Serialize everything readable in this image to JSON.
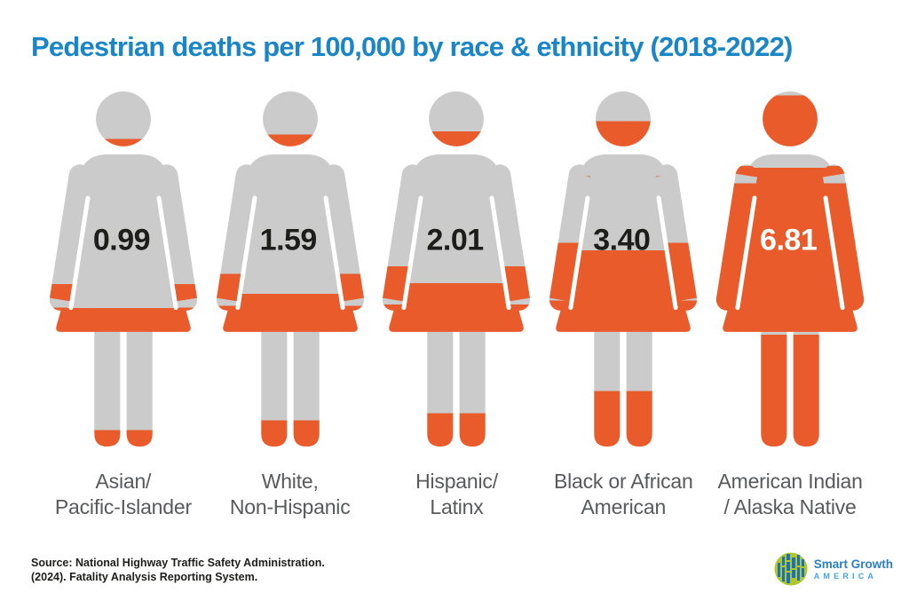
{
  "title": "Pedestrian deaths per 100,000 by race & ethnicity (2018-2022)",
  "chart_data": {
    "type": "pictogram",
    "title": "Pedestrian deaths per 100,000 by race & ethnicity (2018-2022)",
    "unit": "pedestrian deaths per 100,000 people",
    "period": "2018-2022",
    "categories": [
      "Asian/Pacific-Islander",
      "White, Non-Hispanic",
      "Hispanic/Latinx",
      "Black or African American",
      "American Indian / Alaska Native"
    ],
    "values": [
      0.99,
      1.59,
      2.01,
      3.4,
      6.81
    ],
    "max_value": 6.81,
    "legend": "none",
    "grid": false,
    "fill_color": "#ea5b2b",
    "base_color": "#cbcbcb",
    "note": "each female figure is filled orange from the bottom in proportion to its value"
  },
  "figures": [
    {
      "id": "asian-pacific-islander",
      "value": 0.99,
      "value_text": "0.99",
      "fill_percent": 13.5,
      "value_color": "#1d1d1b",
      "label_line1": "Asian/",
      "label_line2": "Pacific-Islander"
    },
    {
      "id": "white-non-hispanic",
      "value": 1.59,
      "value_text": "1.59",
      "fill_percent": 21.5,
      "value_color": "#1d1d1b",
      "label_line1": "White,",
      "label_line2": "Non-Hispanic"
    },
    {
      "id": "hispanic-latinx",
      "value": 2.01,
      "value_text": "2.01",
      "fill_percent": 27.5,
      "value_color": "#1d1d1b",
      "label_line1": "Hispanic/",
      "label_line2": "Latinx"
    },
    {
      "id": "black-or-african-american",
      "value": 3.4,
      "value_text": "3.40",
      "fill_percent": 46,
      "value_color": "#1d1d1b",
      "label_line1": "Black or African",
      "label_line2": "American"
    },
    {
      "id": "american-indian-alaska-native",
      "value": 6.81,
      "value_text": "6.81",
      "fill_percent": 92.5,
      "value_color": "#ffffff",
      "label_line1": "American Indian",
      "label_line2": "/ Alaska Native"
    }
  ],
  "footer": {
    "source_line1": "Source: National Highway Traffic Safety Administration.",
    "source_line2": "(2024). Fatality Analysis Reporting System.",
    "logo_line1": "Smart Growth",
    "logo_line2": "AMERICA"
  },
  "colors": {
    "title_blue": "#1a86c8",
    "base_gray": "#cbcbcb",
    "fill_orange": "#ea5b2b",
    "label_gray": "#58595b",
    "text_dark": "#1d1d1b",
    "logo_blue": "#2b7fc3",
    "logo_light_blue": "#41a8df",
    "logo_green": "#aec72f",
    "logo_deep_blue": "#1d71b8"
  }
}
